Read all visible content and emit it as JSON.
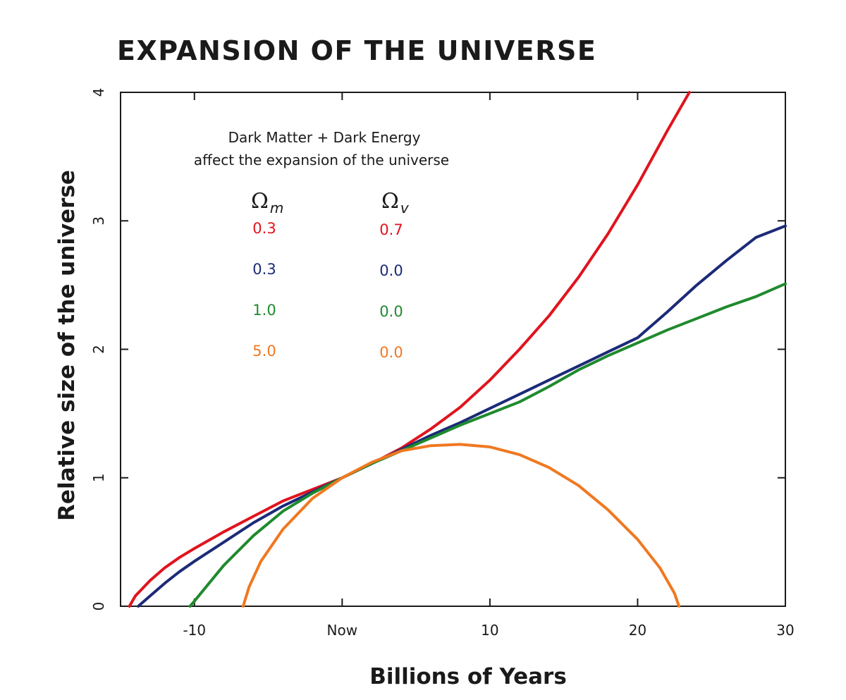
{
  "chart_data": {
    "type": "line",
    "title": "EXPANSION OF THE UNIVERSE",
    "xlabel": "Billions of Years",
    "ylabel": "Relative size of the universe",
    "xlim": [
      -15,
      30
    ],
    "ylim": [
      0,
      4
    ],
    "x_ticks": [
      {
        "value": -10,
        "label": "-10"
      },
      {
        "value": 0,
        "label": "Now"
      },
      {
        "value": 10,
        "label": "10"
      },
      {
        "value": 20,
        "label": "20"
      },
      {
        "value": 30,
        "label": "30"
      }
    ],
    "y_ticks": [
      {
        "value": 0,
        "label": "0"
      },
      {
        "value": 1,
        "label": "1"
      },
      {
        "value": 2,
        "label": "2"
      },
      {
        "value": 3,
        "label": "3"
      },
      {
        "value": 4,
        "label": "4"
      }
    ],
    "grid": false,
    "annotation": {
      "line1": "Dark Matter + Dark Energy",
      "line2": "affect the expansion of the universe"
    },
    "legend": {
      "omega_symbol": "Ω",
      "col_m_sub": "m",
      "col_v_sub": "v",
      "rows": [
        {
          "omega_m": "0.3",
          "omega_v": "0.7",
          "color": "#e0141e"
        },
        {
          "omega_m": "0.3",
          "omega_v": "0.0",
          "color": "#1c2a78"
        },
        {
          "omega_m": "1.0",
          "omega_v": "0.0",
          "color": "#1f8a2e"
        },
        {
          "omega_m": "5.0",
          "omega_v": "0.0",
          "color": "#f07820"
        }
      ]
    },
    "series": [
      {
        "color": "#e0141e",
        "points": [
          [
            -14.4,
            0
          ],
          [
            -14,
            0.08
          ],
          [
            -13,
            0.2
          ],
          [
            -12,
            0.3
          ],
          [
            -11,
            0.38
          ],
          [
            -10,
            0.45
          ],
          [
            -8,
            0.58
          ],
          [
            -6,
            0.7
          ],
          [
            -4,
            0.82
          ],
          [
            -2,
            0.91
          ],
          [
            0,
            1
          ],
          [
            2,
            1.11
          ],
          [
            4,
            1.23
          ],
          [
            6,
            1.38
          ],
          [
            8,
            1.55
          ],
          [
            10,
            1.76
          ],
          [
            12,
            2.0
          ],
          [
            14,
            2.26
          ],
          [
            16,
            2.56
          ],
          [
            18,
            2.9
          ],
          [
            20,
            3.28
          ],
          [
            22,
            3.7
          ],
          [
            23.5,
            4
          ]
        ]
      },
      {
        "color": "#1c2a78",
        "points": [
          [
            -13.8,
            0
          ],
          [
            -13,
            0.08
          ],
          [
            -12,
            0.18
          ],
          [
            -11,
            0.27
          ],
          [
            -10,
            0.35
          ],
          [
            -8,
            0.5
          ],
          [
            -6,
            0.65
          ],
          [
            -4,
            0.78
          ],
          [
            -2,
            0.89
          ],
          [
            0,
            1
          ],
          [
            2,
            1.11
          ],
          [
            4,
            1.22
          ],
          [
            6,
            1.33
          ],
          [
            8,
            1.43
          ],
          [
            10,
            1.54
          ],
          [
            12,
            1.65
          ],
          [
            14,
            1.76
          ],
          [
            16,
            1.87
          ],
          [
            18,
            1.98
          ],
          [
            20,
            2.09
          ],
          [
            22,
            2.29
          ],
          [
            24,
            2.5
          ],
          [
            26,
            2.69
          ],
          [
            28,
            2.87
          ],
          [
            30,
            2.96
          ]
        ]
      },
      {
        "color": "#1f8a2e",
        "points": [
          [
            -10.3,
            0
          ],
          [
            -10,
            0.04
          ],
          [
            -9,
            0.18
          ],
          [
            -8,
            0.32
          ],
          [
            -6,
            0.55
          ],
          [
            -4,
            0.74
          ],
          [
            -2,
            0.88
          ],
          [
            0,
            1
          ],
          [
            2,
            1.11
          ],
          [
            4,
            1.21
          ],
          [
            6,
            1.31
          ],
          [
            8,
            1.41
          ],
          [
            10,
            1.5
          ],
          [
            12,
            1.59
          ],
          [
            14,
            1.71
          ],
          [
            16,
            1.84
          ],
          [
            18,
            1.95
          ],
          [
            20,
            2.05
          ],
          [
            22,
            2.15
          ],
          [
            24,
            2.24
          ],
          [
            26,
            2.33
          ],
          [
            28,
            2.41
          ],
          [
            30,
            2.51
          ]
        ]
      },
      {
        "color": "#f07820",
        "points": [
          [
            -6.7,
            0
          ],
          [
            -6.3,
            0.15
          ],
          [
            -5.5,
            0.35
          ],
          [
            -4,
            0.6
          ],
          [
            -2,
            0.84
          ],
          [
            0,
            1
          ],
          [
            2,
            1.12
          ],
          [
            4,
            1.21
          ],
          [
            6,
            1.25
          ],
          [
            8,
            1.26
          ],
          [
            10,
            1.24
          ],
          [
            12,
            1.18
          ],
          [
            14,
            1.08
          ],
          [
            16,
            0.94
          ],
          [
            18,
            0.75
          ],
          [
            20,
            0.52
          ],
          [
            21.5,
            0.3
          ],
          [
            22.5,
            0.1
          ],
          [
            22.8,
            0
          ]
        ]
      }
    ]
  }
}
